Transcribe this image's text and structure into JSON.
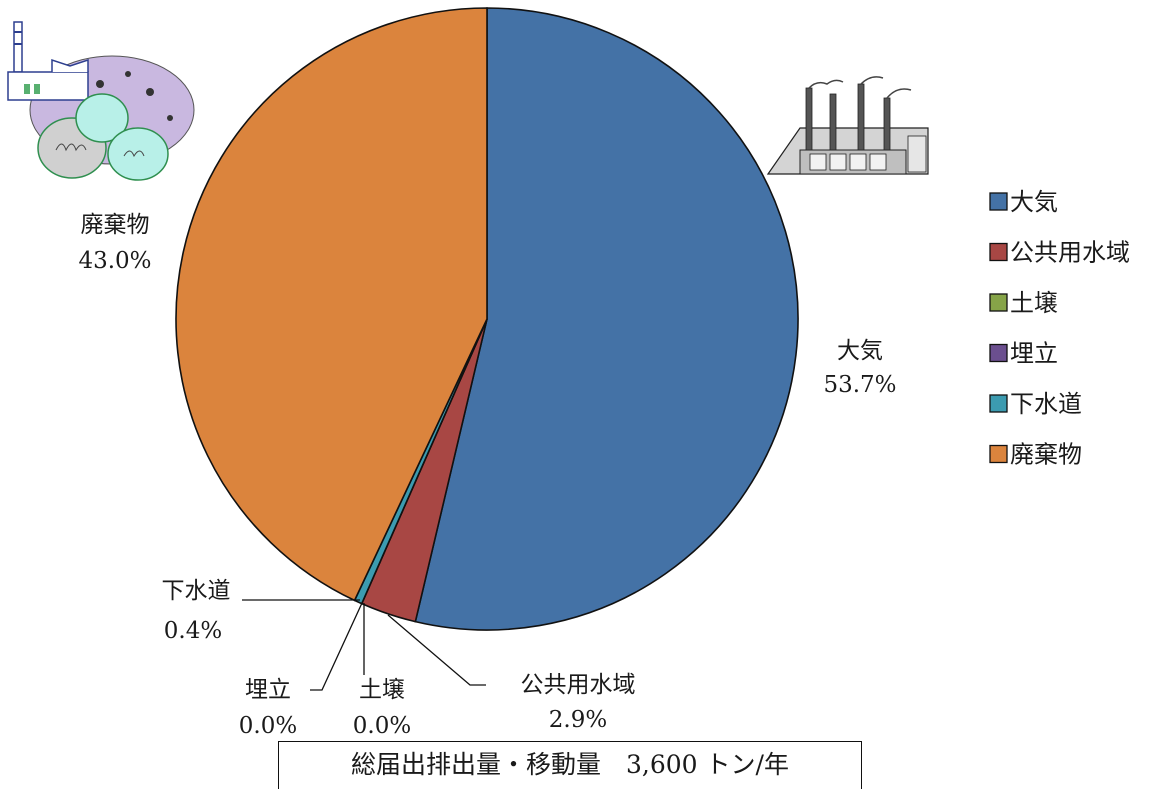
{
  "colors": {
    "大気": "#4472a6",
    "公共用水域": "#a84744",
    "土壌": "#86a448",
    "埋立": "#6b4f8f",
    "下水道": "#3c9bb0",
    "廃棄物": "#db843d"
  },
  "icons": [
    "garbage-bags-factory-icon",
    "factory-smokestacks-icon"
  ],
  "chart_data": {
    "type": "pie",
    "start_angle": "12 o'clock",
    "direction": "clockwise",
    "legend_position": "right",
    "categories": [
      "大気",
      "公共用水域",
      "土壌",
      "埋立",
      "下水道",
      "廃棄物"
    ],
    "values": [
      53.7,
      2.9,
      0.0,
      0.0,
      0.4,
      43.0
    ],
    "value_labels": [
      "53.7%",
      "2.9%",
      "0.0%",
      "0.0%",
      "0.4%",
      "43.0%"
    ],
    "legend": [
      "大気",
      "公共用水域",
      "土壌",
      "埋立",
      "下水道",
      "廃棄物"
    ],
    "total_note": "総届出排出量・移動量　3,600 トン/年"
  }
}
